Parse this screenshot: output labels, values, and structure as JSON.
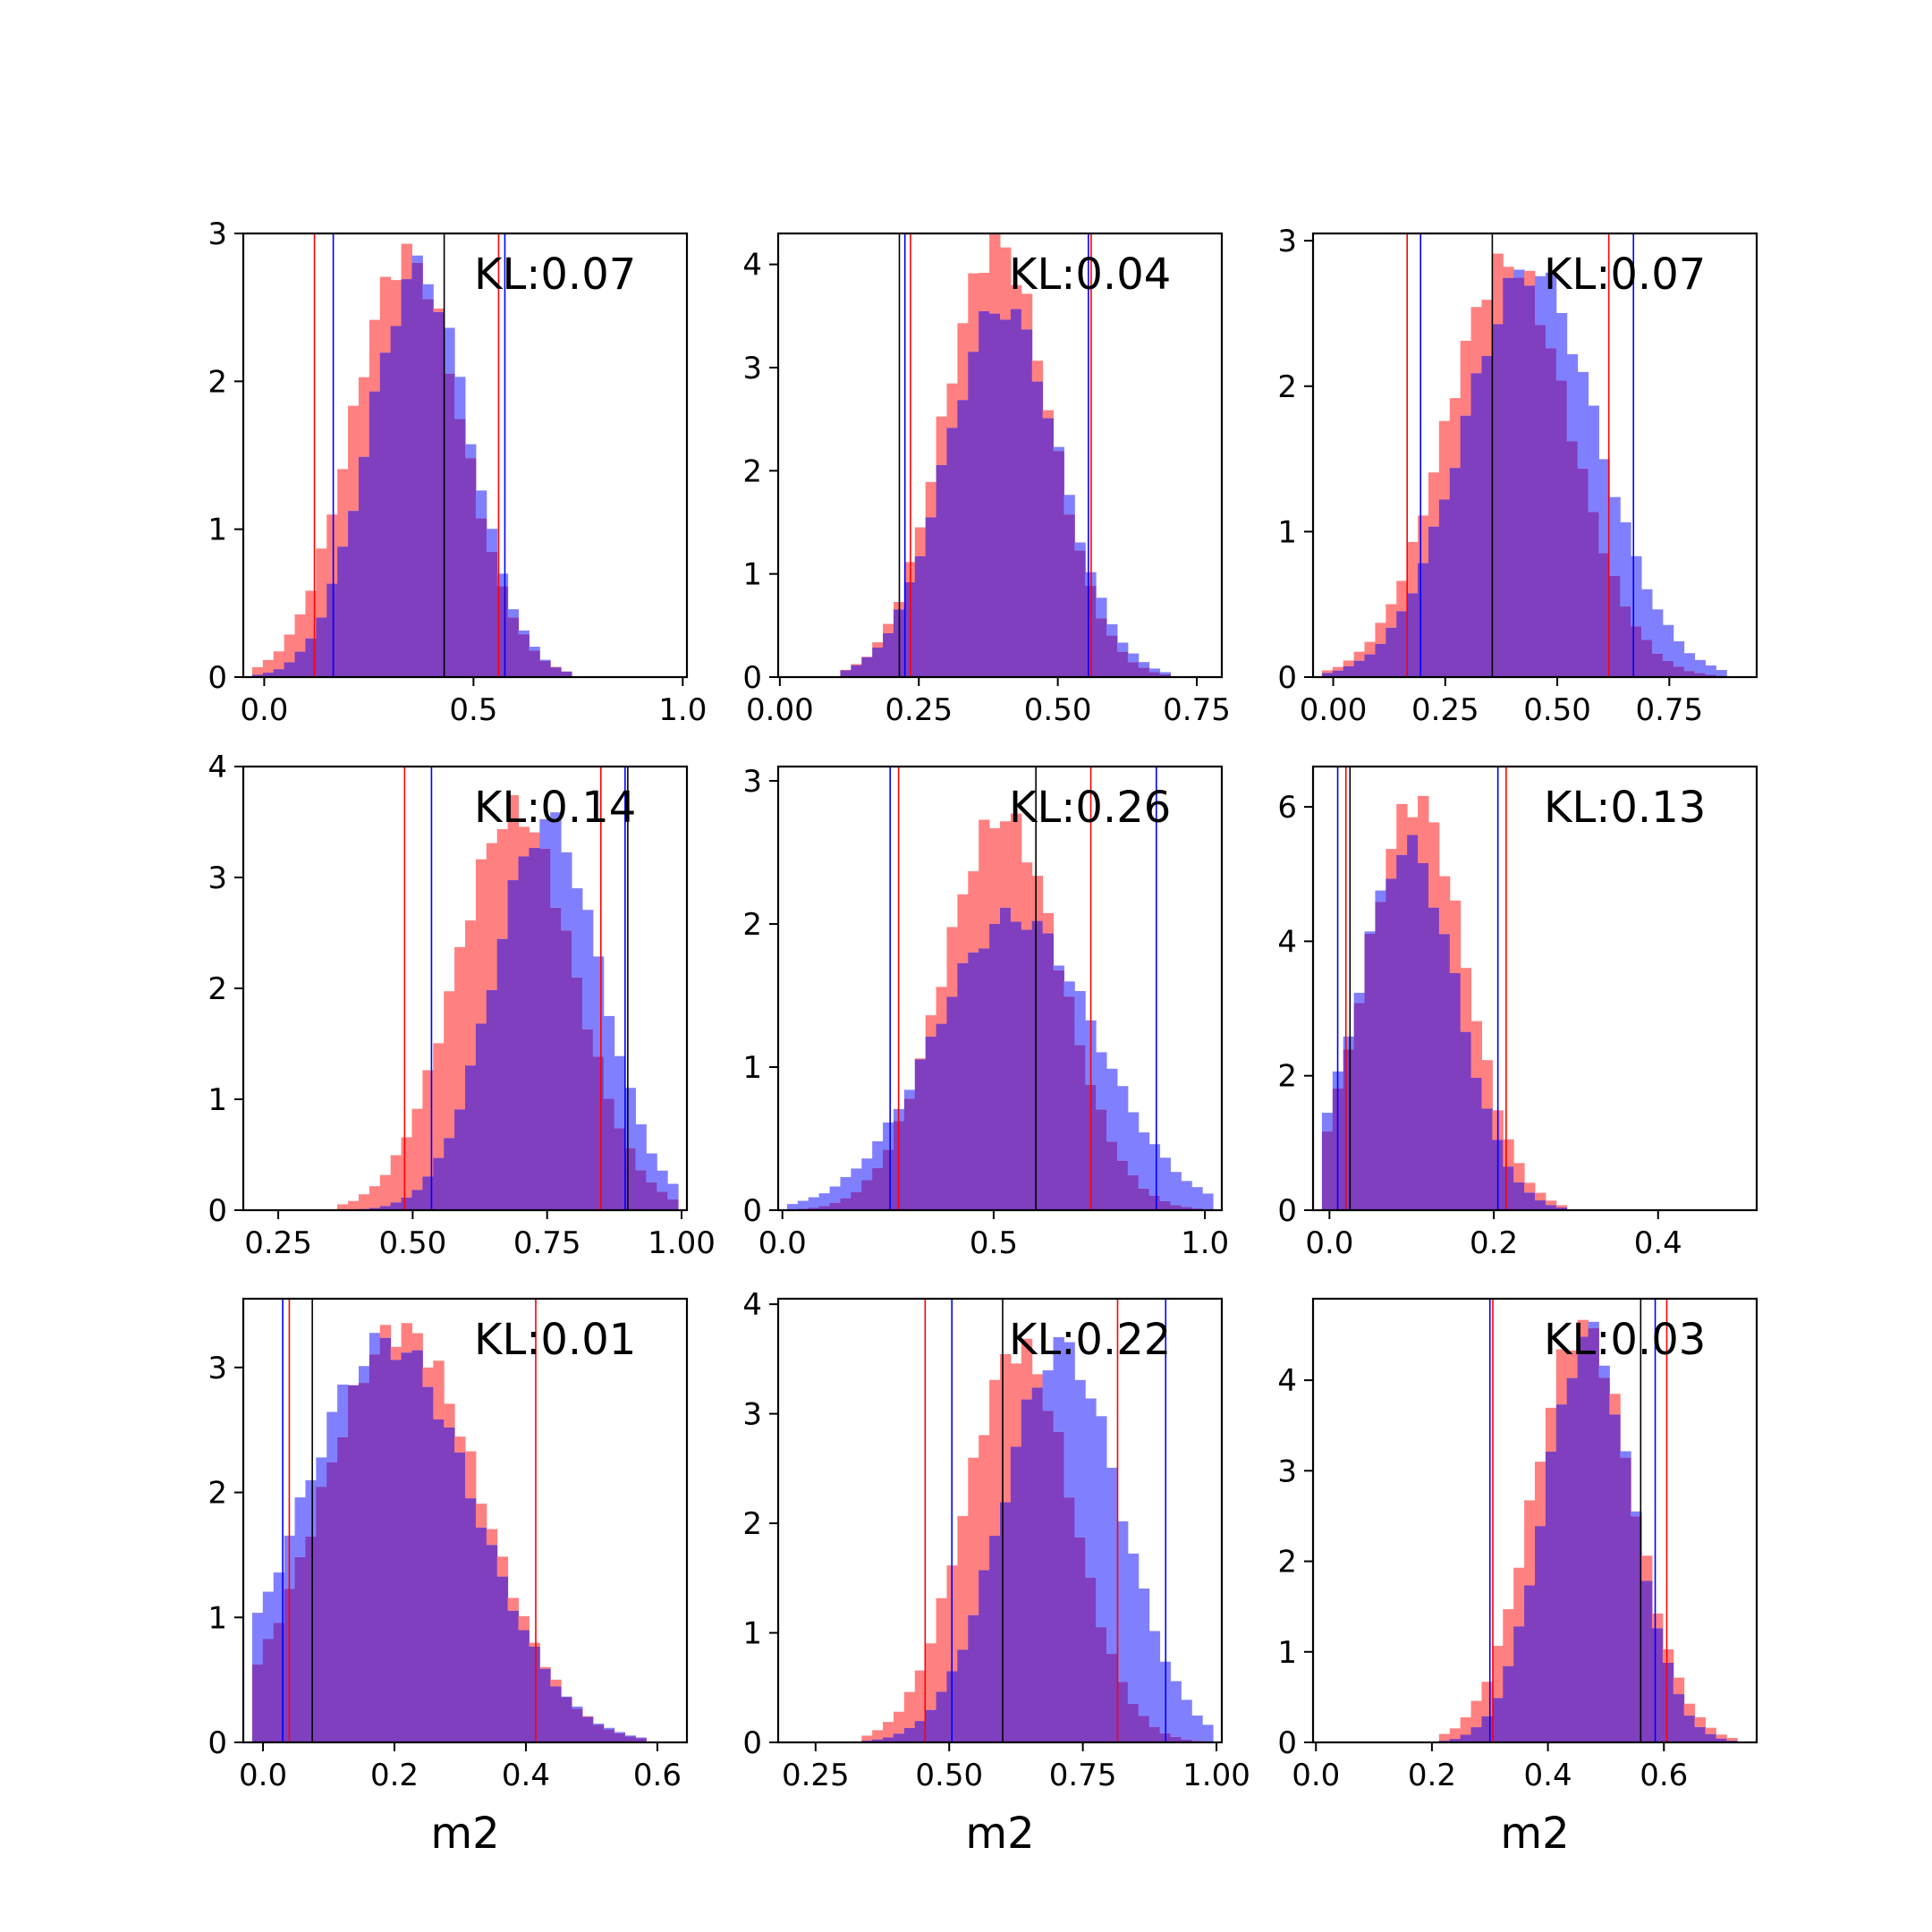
{
  "colors": {
    "red": "#ff0000",
    "blue": "#0000ff",
    "black": "#000000",
    "hist_red": "#ff8080",
    "hist_blue": "#8080ff",
    "hist_overlap": "#7f3fbf"
  },
  "chart_data": [
    {
      "type": "histogram",
      "kl_text": "KL:0.07",
      "xlabel": "",
      "xlim": [
        -0.05,
        1.01
      ],
      "ylim": [
        0,
        3.0
      ],
      "xticks": [
        {
          "v": 0.0,
          "t": "0.0"
        },
        {
          "v": 0.5,
          "t": "0.5"
        },
        {
          "v": 1.0,
          "t": "1.0"
        }
      ],
      "yticks": [
        {
          "v": 0,
          "t": "0"
        },
        {
          "v": 1,
          "t": "1"
        },
        {
          "v": 2,
          "t": "2"
        },
        {
          "v": 3,
          "t": "3"
        }
      ],
      "red": {
        "mu": 0.34,
        "sd": 0.13,
        "peak": 2.85
      },
      "blue": {
        "mu": 0.37,
        "sd": 0.12,
        "peak": 2.75
      },
      "vlines": [
        {
          "x": 0.12,
          "color": "red"
        },
        {
          "x": 0.56,
          "color": "red"
        },
        {
          "x": 0.165,
          "color": "blue"
        },
        {
          "x": 0.575,
          "color": "blue"
        },
        {
          "x": 0.43,
          "color": "black"
        }
      ]
    },
    {
      "type": "histogram",
      "kl_text": "KL:0.04",
      "xlabel": "",
      "xlim": [
        -0.003,
        0.795
      ],
      "ylim": [
        0,
        4.3
      ],
      "xticks": [
        {
          "v": 0.0,
          "t": "0.00"
        },
        {
          "v": 0.25,
          "t": "0.25"
        },
        {
          "v": 0.5,
          "t": "0.50"
        },
        {
          "v": 0.75,
          "t": "0.75"
        }
      ],
      "yticks": [
        {
          "v": 0,
          "t": "0"
        },
        {
          "v": 1,
          "t": "1"
        },
        {
          "v": 2,
          "t": "2"
        },
        {
          "v": 3,
          "t": "3"
        },
        {
          "v": 4,
          "t": "4"
        }
      ],
      "red": {
        "mu": 0.39,
        "sd": 0.095,
        "peak": 4.2
      },
      "blue": {
        "mu": 0.4,
        "sd": 0.1,
        "peak": 3.6
      },
      "vlines": [
        {
          "x": 0.235,
          "color": "red"
        },
        {
          "x": 0.56,
          "color": "red"
        },
        {
          "x": 0.225,
          "color": "blue"
        },
        {
          "x": 0.555,
          "color": "blue"
        },
        {
          "x": 0.215,
          "color": "black"
        }
      ]
    },
    {
      "type": "histogram",
      "kl_text": "KL:0.07",
      "xlabel": "",
      "xlim": [
        -0.045,
        0.945
      ],
      "ylim": [
        0,
        3.05
      ],
      "xticks": [
        {
          "v": 0.0,
          "t": "0.00"
        },
        {
          "v": 0.25,
          "t": "0.25"
        },
        {
          "v": 0.5,
          "t": "0.50"
        },
        {
          "v": 0.75,
          "t": "0.75"
        }
      ],
      "yticks": [
        {
          "v": 0,
          "t": "0"
        },
        {
          "v": 1,
          "t": "1"
        },
        {
          "v": 2,
          "t": "2"
        },
        {
          "v": 3,
          "t": "3"
        }
      ],
      "red": {
        "mu": 0.39,
        "sd": 0.14,
        "peak": 2.85
      },
      "blue": {
        "mu": 0.44,
        "sd": 0.15,
        "peak": 2.8
      },
      "vlines": [
        {
          "x": 0.165,
          "color": "red"
        },
        {
          "x": 0.615,
          "color": "red"
        },
        {
          "x": 0.195,
          "color": "blue"
        },
        {
          "x": 0.67,
          "color": "blue"
        },
        {
          "x": 0.355,
          "color": "black"
        }
      ]
    },
    {
      "type": "histogram",
      "kl_text": "KL:0.14",
      "xlabel": "",
      "xlim": [
        0.185,
        1.01
      ],
      "ylim": [
        0,
        4.0
      ],
      "xticks": [
        {
          "v": 0.25,
          "t": "0.25"
        },
        {
          "v": 0.5,
          "t": "0.50"
        },
        {
          "v": 0.75,
          "t": "0.75"
        },
        {
          "v": 1.0,
          "t": "1.00"
        }
      ],
      "yticks": [
        {
          "v": 0,
          "t": "0"
        },
        {
          "v": 1,
          "t": "1"
        },
        {
          "v": 2,
          "t": "2"
        },
        {
          "v": 3,
          "t": "3"
        },
        {
          "v": 4,
          "t": "4"
        }
      ],
      "red": {
        "mu": 0.69,
        "sd": 0.11,
        "peak": 3.6
      },
      "blue": {
        "mu": 0.75,
        "sd": 0.1,
        "peak": 3.5
      },
      "vlines": [
        {
          "x": 0.485,
          "color": "red"
        },
        {
          "x": 0.85,
          "color": "red"
        },
        {
          "x": 0.535,
          "color": "blue"
        },
        {
          "x": 0.895,
          "color": "blue"
        },
        {
          "x": 0.9,
          "color": "black"
        }
      ]
    },
    {
      "type": "histogram",
      "kl_text": "KL:0.26",
      "xlabel": "",
      "xlim": [
        -0.01,
        1.04
      ],
      "ylim": [
        0,
        3.1
      ],
      "xticks": [
        {
          "v": 0.0,
          "t": "0.0"
        },
        {
          "v": 0.5,
          "t": "0.5"
        },
        {
          "v": 1.0,
          "t": "1.0"
        }
      ],
      "yticks": [
        {
          "v": 0,
          "t": "0"
        },
        {
          "v": 1,
          "t": "1"
        },
        {
          "v": 2,
          "t": "2"
        },
        {
          "v": 3,
          "t": "3"
        }
      ],
      "red": {
        "mu": 0.52,
        "sd": 0.14,
        "peak": 2.75
      },
      "blue": {
        "mu": 0.55,
        "sd": 0.19,
        "peak": 2.05
      },
      "vlines": [
        {
          "x": 0.275,
          "color": "red"
        },
        {
          "x": 0.73,
          "color": "red"
        },
        {
          "x": 0.255,
          "color": "blue"
        },
        {
          "x": 0.885,
          "color": "blue"
        },
        {
          "x": 0.6,
          "color": "black"
        }
      ]
    },
    {
      "type": "histogram",
      "kl_text": "KL:0.13",
      "xlabel": "",
      "xlim": [
        -0.02,
        0.52
      ],
      "ylim": [
        0,
        6.6
      ],
      "xticks": [
        {
          "v": 0.0,
          "t": "0.0"
        },
        {
          "v": 0.2,
          "t": "0.2"
        },
        {
          "v": 0.4,
          "t": "0.4"
        }
      ],
      "yticks": [
        {
          "v": 0,
          "t": "0"
        },
        {
          "v": 2,
          "t": "2"
        },
        {
          "v": 4,
          "t": "4"
        },
        {
          "v": 6,
          "t": "6"
        }
      ],
      "red": {
        "mu": 0.105,
        "sd": 0.06,
        "peak": 6.1
      },
      "blue": {
        "mu": 0.095,
        "sd": 0.06,
        "peak": 5.4
      },
      "vlines": [
        {
          "x": 0.02,
          "color": "red"
        },
        {
          "x": 0.215,
          "color": "red"
        },
        {
          "x": 0.01,
          "color": "blue"
        },
        {
          "x": 0.205,
          "color": "blue"
        },
        {
          "x": 0.025,
          "color": "black"
        }
      ]
    },
    {
      "type": "histogram",
      "kl_text": "KL:0.01",
      "xlabel": "m2",
      "xlim": [
        -0.03,
        0.645
      ],
      "ylim": [
        0,
        3.55
      ],
      "xticks": [
        {
          "v": 0.0,
          "t": "0.0"
        },
        {
          "v": 0.2,
          "t": "0.2"
        },
        {
          "v": 0.4,
          "t": "0.4"
        },
        {
          "v": 0.6,
          "t": "0.6"
        }
      ],
      "yticks": [
        {
          "v": 0,
          "t": "0"
        },
        {
          "v": 1,
          "t": "1"
        },
        {
          "v": 2,
          "t": "2"
        },
        {
          "v": 3,
          "t": "3"
        }
      ],
      "red": {
        "mu": 0.21,
        "sd": 0.12,
        "peak": 3.3
      },
      "blue": {
        "mu": 0.19,
        "sd": 0.13,
        "peak": 3.2
      },
      "vlines": [
        {
          "x": 0.04,
          "color": "red"
        },
        {
          "x": 0.415,
          "color": "red"
        },
        {
          "x": 0.03,
          "color": "blue"
        },
        {
          "x": 0.075,
          "color": "black"
        }
      ]
    },
    {
      "type": "histogram",
      "kl_text": "KL:0.22",
      "xlabel": "m2",
      "xlim": [
        0.18,
        1.01
      ],
      "ylim": [
        0,
        4.05
      ],
      "xticks": [
        {
          "v": 0.25,
          "t": "0.25"
        },
        {
          "v": 0.5,
          "t": "0.50"
        },
        {
          "v": 0.75,
          "t": "0.75"
        },
        {
          "v": 1.0,
          "t": "1.00"
        }
      ],
      "yticks": [
        {
          "v": 0,
          "t": "0"
        },
        {
          "v": 1,
          "t": "1"
        },
        {
          "v": 2,
          "t": "2"
        },
        {
          "v": 3,
          "t": "3"
        },
        {
          "v": 4,
          "t": "4"
        }
      ],
      "red": {
        "mu": 0.63,
        "sd": 0.1,
        "peak": 3.6
      },
      "blue": {
        "mu": 0.71,
        "sd": 0.11,
        "peak": 3.6
      },
      "vlines": [
        {
          "x": 0.455,
          "color": "red"
        },
        {
          "x": 0.815,
          "color": "red"
        },
        {
          "x": 0.505,
          "color": "blue"
        },
        {
          "x": 0.905,
          "color": "blue"
        },
        {
          "x": 0.6,
          "color": "black"
        }
      ]
    },
    {
      "type": "histogram",
      "kl_text": "KL:0.03",
      "xlabel": "m2",
      "xlim": [
        -0.005,
        0.76
      ],
      "ylim": [
        0,
        4.9
      ],
      "xticks": [
        {
          "v": 0.0,
          "t": "0.0"
        },
        {
          "v": 0.2,
          "t": "0.2"
        },
        {
          "v": 0.4,
          "t": "0.4"
        },
        {
          "v": 0.6,
          "t": "0.6"
        }
      ],
      "yticks": [
        {
          "v": 0,
          "t": "0"
        },
        {
          "v": 1,
          "t": "1"
        },
        {
          "v": 2,
          "t": "2"
        },
        {
          "v": 3,
          "t": "3"
        },
        {
          "v": 4,
          "t": "4"
        }
      ],
      "red": {
        "mu": 0.46,
        "sd": 0.085,
        "peak": 4.6
      },
      "blue": {
        "mu": 0.47,
        "sd": 0.075,
        "peak": 4.5
      },
      "vlines": [
        {
          "x": 0.305,
          "color": "red"
        },
        {
          "x": 0.605,
          "color": "red"
        },
        {
          "x": 0.3,
          "color": "blue"
        },
        {
          "x": 0.585,
          "color": "blue"
        },
        {
          "x": 0.56,
          "color": "black"
        }
      ]
    }
  ]
}
